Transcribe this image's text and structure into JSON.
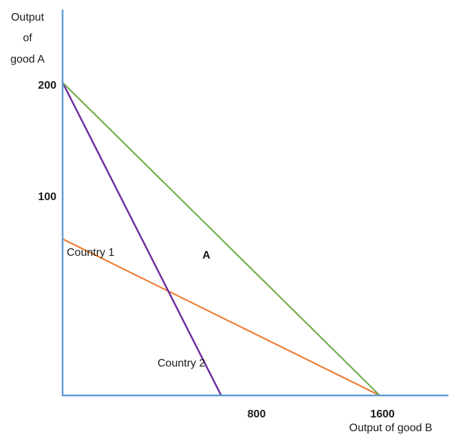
{
  "chart_data": {
    "type": "line",
    "xlabel": "Output of good B",
    "ylabel_lines": [
      "Output",
      "of",
      "good A"
    ],
    "x_ticks": [
      800,
      1600
    ],
    "y_ticks": [
      100,
      200
    ],
    "xlim": [
      0,
      1920
    ],
    "ylim": [
      0,
      230
    ],
    "series": [
      {
        "name": "Country 1",
        "x": [
          0,
          1600
        ],
        "y": [
          100,
          0
        ],
        "color": "#ed7d31"
      },
      {
        "name": "Country 2",
        "x": [
          0,
          800
        ],
        "y": [
          200,
          0
        ],
        "color": "#7030a0"
      },
      {
        "name": "",
        "x": [
          0,
          1600
        ],
        "y": [
          200,
          0
        ],
        "color": "#70ad47"
      }
    ],
    "annotations": [
      {
        "text": "A"
      }
    ],
    "axis_color": "#5b9bd5"
  }
}
